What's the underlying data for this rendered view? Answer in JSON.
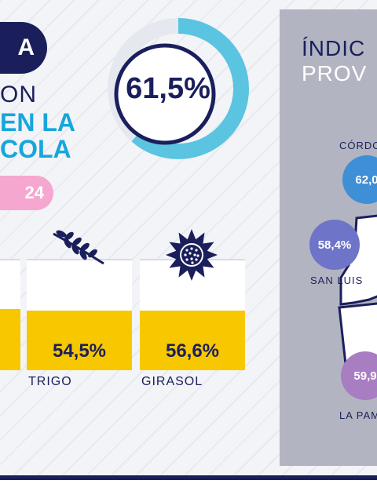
{
  "header": {
    "pill_text": "A",
    "line1": "ON",
    "line2": "EN LA",
    "line3": "COLA",
    "year_text": "24"
  },
  "donut": {
    "value_label": "61,5%",
    "fraction": 0.615,
    "color": "#5bc4e0",
    "text_color": "#1a1f5c"
  },
  "crops": [
    {
      "label": "",
      "value": ""
    },
    {
      "label": "TRIGO",
      "value": "54,5%",
      "icon": "wheat-icon"
    },
    {
      "label": "GIRASOL",
      "value": "56,6%",
      "icon": "sunflower-icon"
    }
  ],
  "provinces_panel": {
    "title_line1": "ÍNDIC",
    "title_line2": "PROV",
    "items": [
      {
        "name": "CÓRDO",
        "value": "62,0",
        "color": "#3f8fd6"
      },
      {
        "name": "SAN LUIS",
        "value": "58,4%",
        "color": "#6e74c8"
      },
      {
        "name": "LA PAM",
        "value": "59,9",
        "color": "#a97dc2"
      }
    ]
  },
  "colors": {
    "navy": "#1a1f5c",
    "cyan": "#16a6dc",
    "yellow": "#f7c700",
    "pink": "#f6a7cf"
  }
}
